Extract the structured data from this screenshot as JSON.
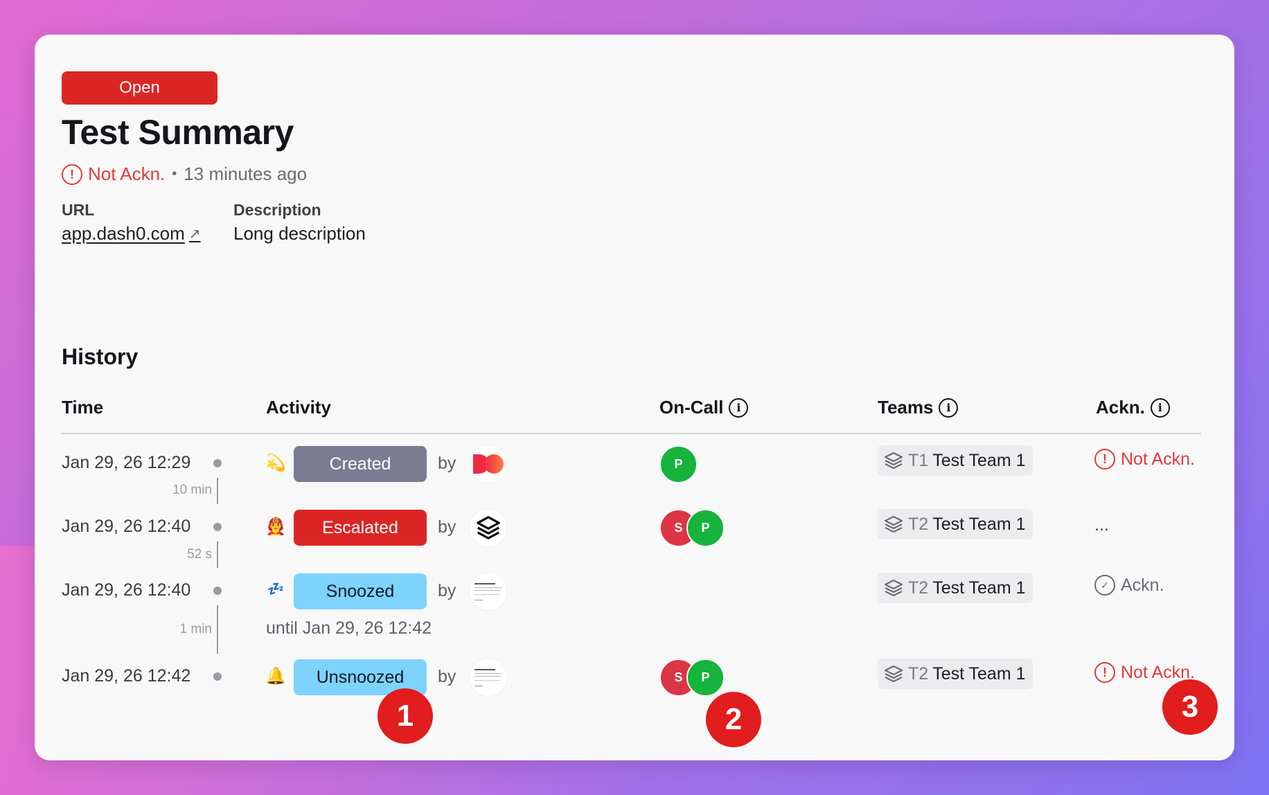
{
  "incident": {
    "status": "Open",
    "title": "Test Summary",
    "ack_state": "Not Ackn.",
    "age": "13 minutes ago"
  },
  "details": {
    "url_label": "URL",
    "url_value": "app.dash0.com",
    "description_label": "Description",
    "description_value": "Long description"
  },
  "history": {
    "title": "History",
    "columns": {
      "time": "Time",
      "activity": "Activity",
      "on_call": "On-Call",
      "teams": "Teams",
      "ackn": "Ackn."
    },
    "by_label": "by",
    "rows": [
      {
        "time": "Jan 29, 26 12:29",
        "duration_after": "10 min",
        "emoji": "💫",
        "activity": "Created",
        "on_call": [
          "P"
        ],
        "team_code": "T1",
        "team_name": "Test Team 1",
        "ack": "Not Ackn."
      },
      {
        "time": "Jan 29, 26 12:40",
        "duration_after": "52 s",
        "emoji": "👨‍🚒",
        "activity": "Escalated",
        "on_call": [
          "S",
          "P"
        ],
        "team_code": "T2",
        "team_name": "Test Team 1",
        "ack": "..."
      },
      {
        "time": "Jan 29, 26 12:40",
        "duration_after": "1 min",
        "emoji": "💤",
        "activity": "Snoozed",
        "until": "until Jan 29, 26 12:42",
        "on_call": [],
        "team_code": "T2",
        "team_name": "Test Team 1",
        "ack": "Ackn."
      },
      {
        "time": "Jan 29, 26 12:42",
        "emoji": "🔔",
        "activity": "Unsnoozed",
        "on_call": [
          "S",
          "P"
        ],
        "team_code": "T2",
        "team_name": "Test Team 1",
        "ack": "Not Ackn."
      }
    ]
  },
  "markers": [
    "1",
    "2",
    "3"
  ],
  "colors": {
    "open": "#dc2626",
    "created": "#7b7b91",
    "escalated": "#dc2626",
    "snoozed": "#7dd3fc",
    "person_p": "#16b33d",
    "person_s": "#dc3545",
    "warn": "#e03a3a",
    "marker": "#e11d1d"
  },
  "icons": [
    "alert-circle-icon",
    "external-link-icon",
    "info-icon",
    "team-stack-icon",
    "check-circle-icon"
  ]
}
